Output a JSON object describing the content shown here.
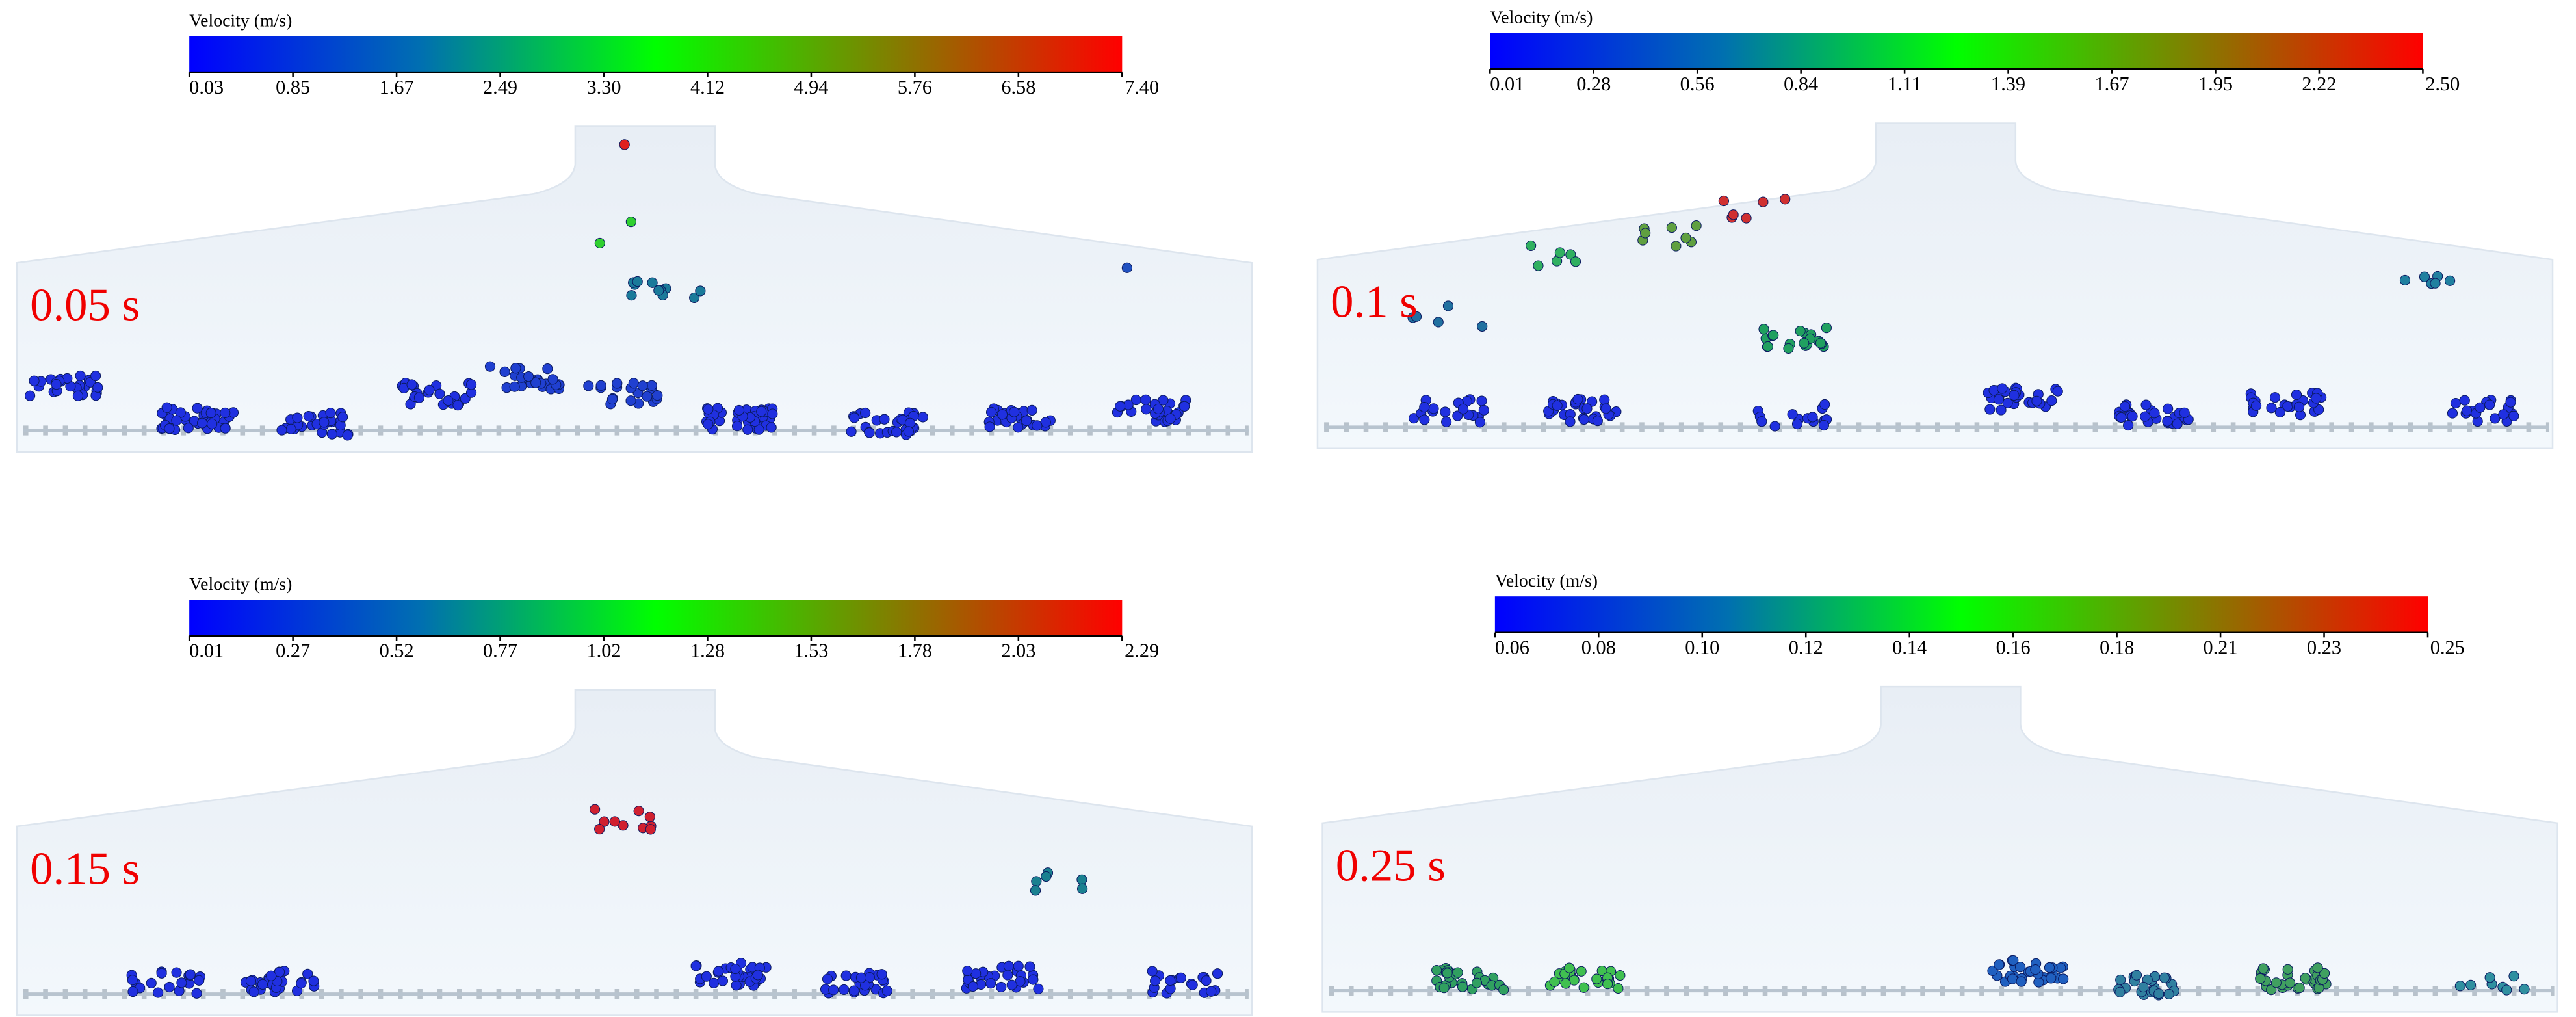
{
  "panels": [
    {
      "colorbar_title": "Velocity (m/s)",
      "ticks": [
        "0.03",
        "0.85",
        "1.67",
        "2.49",
        "3.30",
        "4.12",
        "4.94",
        "5.76",
        "6.58",
        "7.40"
      ],
      "time_label": "0.05 s"
    },
    {
      "colorbar_title": "Velocity (m/s)",
      "ticks": [
        "0.01",
        "0.28",
        "0.56",
        "0.84",
        "1.11",
        "1.39",
        "1.67",
        "1.95",
        "2.22",
        "2.50"
      ],
      "time_label": "0.1 s"
    },
    {
      "colorbar_title": "Velocity (m/s)",
      "ticks": [
        "0.01",
        "0.27",
        "0.52",
        "0.77",
        "1.02",
        "1.28",
        "1.53",
        "1.78",
        "2.03",
        "2.29"
      ],
      "time_label": "0.15 s"
    },
    {
      "colorbar_title": "Velocity (m/s)",
      "ticks": [
        "0.06",
        "0.08",
        "0.10",
        "0.12",
        "0.14",
        "0.16",
        "0.18",
        "0.21",
        "0.23",
        "0.25"
      ],
      "time_label": "0.25 s"
    }
  ]
}
